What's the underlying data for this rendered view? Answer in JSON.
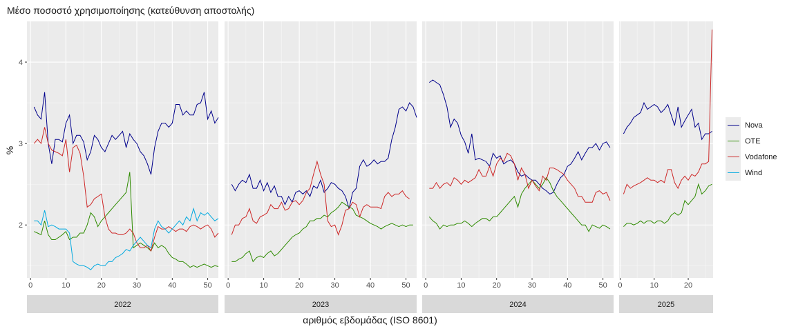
{
  "chart_data": {
    "type": "line",
    "title": "Μέσο ποσοστό χρησιμοποίησης (κατεύθυνση αποστολής)",
    "xlabel": "αριθμός εβδομάδας (ISO 8601)",
    "ylabel": "%",
    "ylim": [
      1.35,
      4.5
    ],
    "yticks": [
      "2",
      "3",
      "4"
    ],
    "grid": true,
    "legend_position": "right",
    "facets": [
      {
        "label": "2022",
        "xlim": [
          -1,
          53
        ],
        "xticks": [
          "0",
          "10",
          "20",
          "30",
          "40",
          "50"
        ]
      },
      {
        "label": "2023",
        "xlim": [
          -1,
          53
        ],
        "xticks": [
          "0",
          "10",
          "20",
          "30",
          "40",
          "50"
        ]
      },
      {
        "label": "2024",
        "xlim": [
          -1,
          53
        ],
        "xticks": [
          "0",
          "10",
          "20",
          "30",
          "40",
          "50"
        ]
      },
      {
        "label": "2025",
        "xlim": [
          -0.3,
          27.3
        ],
        "xticks": [
          "0",
          "10",
          "20"
        ]
      }
    ],
    "series": [
      {
        "name": "Nova",
        "color": "#00008B",
        "data": {
          "2022": [
            3.45,
            3.35,
            3.3,
            3.63,
            3.0,
            2.75,
            3.05,
            3.05,
            3.02,
            3.25,
            3.35,
            3.0,
            3.1,
            3.1,
            3.02,
            2.8,
            2.9,
            3.1,
            3.05,
            2.95,
            2.9,
            3.0,
            3.1,
            3.05,
            3.1,
            3.15,
            2.95,
            3.12,
            3.05,
            3.0,
            2.9,
            2.85,
            2.75,
            2.62,
            2.95,
            3.15,
            3.25,
            3.25,
            3.2,
            3.25,
            3.48,
            3.48,
            3.35,
            3.4,
            3.35,
            3.35,
            3.48,
            3.5,
            3.63,
            3.3,
            3.4,
            3.25,
            3.32
          ],
          "2023": [
            2.5,
            2.42,
            2.5,
            2.55,
            2.52,
            2.62,
            2.45,
            2.45,
            2.55,
            2.42,
            2.52,
            2.4,
            2.48,
            2.35,
            2.35,
            2.25,
            2.35,
            2.28,
            2.4,
            2.42,
            2.38,
            2.42,
            2.35,
            2.48,
            2.45,
            2.55,
            2.4,
            2.45,
            2.52,
            2.5,
            2.45,
            2.42,
            2.35,
            2.2,
            2.4,
            2.45,
            2.72,
            2.8,
            2.72,
            2.75,
            2.8,
            2.75,
            2.78,
            2.78,
            2.82,
            3.05,
            3.2,
            3.42,
            3.45,
            3.4,
            3.5,
            3.45,
            3.32
          ],
          "2024": [
            3.75,
            3.78,
            3.75,
            3.72,
            3.6,
            3.45,
            3.2,
            3.3,
            3.25,
            3.1,
            3.02,
            2.88,
            3.12,
            2.8,
            2.82,
            2.8,
            2.78,
            2.72,
            2.88,
            2.82,
            2.85,
            2.75,
            2.78,
            2.8,
            2.75,
            2.65,
            2.6,
            2.62,
            2.58,
            2.55,
            2.55,
            2.5,
            2.45,
            2.42,
            2.38,
            2.4,
            2.5,
            2.58,
            2.62,
            2.72,
            2.75,
            2.82,
            2.9,
            2.8,
            2.88,
            2.95,
            2.95,
            3.0,
            2.92,
            3.0,
            3.02,
            2.95
          ],
          "2025": [
            3.12,
            3.2,
            3.25,
            3.32,
            3.35,
            3.38,
            3.5,
            3.42,
            3.45,
            3.48,
            3.45,
            3.38,
            3.42,
            3.48,
            3.35,
            3.22,
            3.45,
            3.2,
            3.28,
            3.35,
            3.42,
            3.2,
            3.25,
            3.05,
            3.12,
            3.12,
            3.15
          ]
        }
      },
      {
        "name": "OTE",
        "color": "#2E8B00",
        "data": {
          "2022": [
            1.92,
            1.9,
            1.88,
            2.05,
            1.88,
            1.82,
            1.82,
            1.85,
            1.88,
            1.92,
            1.82,
            1.85,
            1.85,
            1.9,
            1.9,
            2.0,
            2.15,
            2.1,
            1.98,
            2.05,
            2.1,
            2.15,
            2.2,
            2.25,
            2.3,
            2.35,
            2.4,
            2.65,
            1.72,
            1.75,
            1.78,
            1.75,
            1.72,
            1.68,
            1.78,
            1.72,
            1.75,
            1.72,
            1.65,
            1.6,
            1.58,
            1.55,
            1.55,
            1.52,
            1.48,
            1.5,
            1.48,
            1.5,
            1.52,
            1.5,
            1.48,
            1.5,
            1.49
          ],
          "2023": [
            1.55,
            1.55,
            1.58,
            1.6,
            1.65,
            1.68,
            1.55,
            1.6,
            1.62,
            1.6,
            1.65,
            1.68,
            1.62,
            1.65,
            1.7,
            1.75,
            1.8,
            1.85,
            1.88,
            1.9,
            1.95,
            1.98,
            2.05,
            2.05,
            2.08,
            2.08,
            2.12,
            2.1,
            2.15,
            2.18,
            2.22,
            2.28,
            2.25,
            2.22,
            2.2,
            2.12,
            2.1,
            2.08,
            2.05,
            2.02,
            2.0,
            1.98,
            1.95,
            1.98,
            2.0,
            2.02,
            2.0,
            1.98,
            2.0,
            1.98,
            2.0,
            2.0
          ],
          "2024": [
            2.1,
            2.05,
            2.02,
            1.95,
            2.0,
            1.98,
            2.0,
            2.0,
            2.02,
            2.02,
            2.05,
            2.02,
            1.98,
            2.02,
            2.05,
            2.08,
            2.08,
            2.05,
            2.1,
            2.1,
            2.15,
            2.2,
            2.25,
            2.3,
            2.35,
            2.22,
            2.38,
            2.45,
            2.5,
            2.55,
            2.5,
            2.45,
            2.5,
            2.58,
            2.52,
            2.42,
            2.35,
            2.3,
            2.25,
            2.2,
            2.15,
            2.1,
            2.05,
            2.0,
            2.0,
            1.92,
            2.0,
            1.98,
            1.96,
            2.0,
            1.98,
            1.95
          ],
          "2025": [
            1.98,
            2.02,
            2.02,
            2.0,
            2.02,
            2.05,
            2.02,
            2.05,
            2.05,
            2.02,
            2.05,
            2.05,
            2.02,
            2.05,
            2.12,
            2.15,
            2.12,
            2.15,
            2.3,
            2.25,
            2.3,
            2.35,
            2.5,
            2.38,
            2.42,
            2.48,
            2.5
          ]
        }
      },
      {
        "name": "Vodafone",
        "color": "#CD2626",
        "data": {
          "2022": [
            3.0,
            3.05,
            3.0,
            3.2,
            3.0,
            2.92,
            2.9,
            2.88,
            2.85,
            3.05,
            2.65,
            2.95,
            2.98,
            2.88,
            2.6,
            2.22,
            2.25,
            2.32,
            2.35,
            2.38,
            2.1,
            1.95,
            1.9,
            1.9,
            1.88,
            1.88,
            1.9,
            1.95,
            1.9,
            1.78,
            1.72,
            1.72,
            1.75,
            1.68,
            1.85,
            1.98,
            1.95,
            1.95,
            1.98,
            1.95,
            1.92,
            1.95,
            1.95,
            1.92,
            1.98,
            2.0,
            1.98,
            1.95,
            1.98,
            2.0,
            1.95,
            1.85,
            1.9
          ],
          "2023": [
            1.88,
            2.0,
            2.0,
            2.08,
            2.1,
            2.2,
            2.05,
            2.02,
            2.1,
            2.12,
            2.15,
            2.25,
            2.2,
            2.2,
            2.28,
            2.18,
            2.2,
            2.28,
            2.3,
            2.25,
            2.3,
            2.4,
            2.45,
            2.62,
            2.78,
            2.62,
            2.5,
            2.05,
            1.98,
            2.0,
            1.88,
            2.0,
            2.18,
            2.2,
            2.28,
            2.25,
            2.1,
            2.22,
            2.25,
            2.22,
            2.22,
            2.22,
            2.2,
            2.35,
            2.4,
            2.35,
            2.38,
            2.38,
            2.42,
            2.35,
            2.32
          ],
          "2024": [
            2.45,
            2.45,
            2.52,
            2.45,
            2.5,
            2.52,
            2.48,
            2.58,
            2.55,
            2.5,
            2.55,
            2.52,
            2.55,
            2.58,
            2.68,
            2.6,
            2.6,
            2.72,
            2.6,
            2.75,
            2.82,
            2.78,
            2.88,
            2.85,
            2.75,
            2.55,
            2.7,
            2.62,
            2.45,
            2.55,
            2.48,
            2.42,
            2.6,
            2.55,
            2.7,
            2.7,
            2.68,
            2.65,
            2.62,
            2.55,
            2.5,
            2.45,
            2.35,
            2.35,
            2.28,
            2.28,
            2.28,
            2.4,
            2.42,
            2.38,
            2.4,
            2.3
          ],
          "2025": [
            2.38,
            2.5,
            2.45,
            2.48,
            2.5,
            2.52,
            2.55,
            2.58,
            2.55,
            2.55,
            2.52,
            2.55,
            2.52,
            2.68,
            2.68,
            2.52,
            2.45,
            2.55,
            2.6,
            2.55,
            2.62,
            2.6,
            2.65,
            2.75,
            2.75,
            2.78,
            4.4
          ]
        }
      },
      {
        "name": "Wind",
        "color": "#00A9E0",
        "data": {
          "2022": [
            2.05,
            2.05,
            2.0,
            2.18,
            1.98,
            2.0,
            1.98,
            1.95,
            1.95,
            1.95,
            1.9,
            1.55,
            1.52,
            1.5,
            1.5,
            1.48,
            1.45,
            1.5,
            1.52,
            1.5,
            1.5,
            1.55,
            1.55,
            1.6,
            1.62,
            1.65,
            1.7,
            1.68,
            1.75,
            1.8,
            1.85,
            1.8,
            1.75,
            1.72,
            1.95,
            2.05,
            1.98,
            1.95,
            1.9,
            1.95,
            2.0,
            2.05,
            2.0,
            2.1,
            2.05,
            2.2,
            2.05,
            2.15,
            2.12,
            2.15,
            2.1,
            2.05,
            2.08
          ],
          "2023": [],
          "2024": [],
          "2025": []
        }
      }
    ]
  }
}
